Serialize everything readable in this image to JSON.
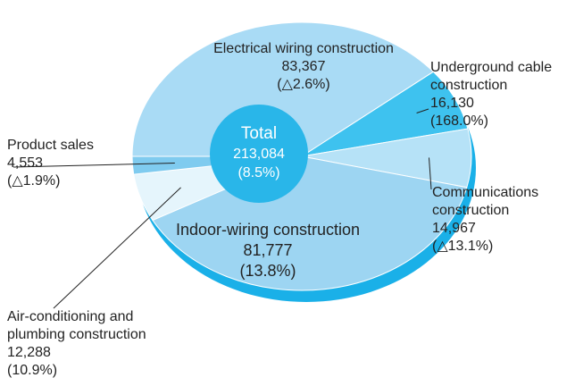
{
  "chart_data": {
    "type": "pie",
    "categories": [
      "Electrical wiring construction",
      "Underground cable construction",
      "Communications construction",
      "Indoor-wiring construction",
      "Air-conditioning and plumbing construction",
      "Product sales"
    ],
    "values": [
      83367,
      16130,
      14967,
      81777,
      12288,
      4553
    ],
    "value_labels": [
      "83,367",
      "16,130",
      "14,967",
      "81,777",
      "12,288",
      "4,553"
    ],
    "changes": [
      "(△2.6%)",
      "(168.0%)",
      "(△13.1%)",
      "(13.8%)",
      "(10.9%)",
      "(△1.9%)"
    ],
    "colors": [
      "#a9dbf5",
      "#3ec2ef",
      "#b6e2f7",
      "#9dd5f2",
      "#e5f5fc",
      "#7fcbef"
    ],
    "total": {
      "label": "Total",
      "value_label": "213,084",
      "change": "(8.5%)"
    }
  }
}
